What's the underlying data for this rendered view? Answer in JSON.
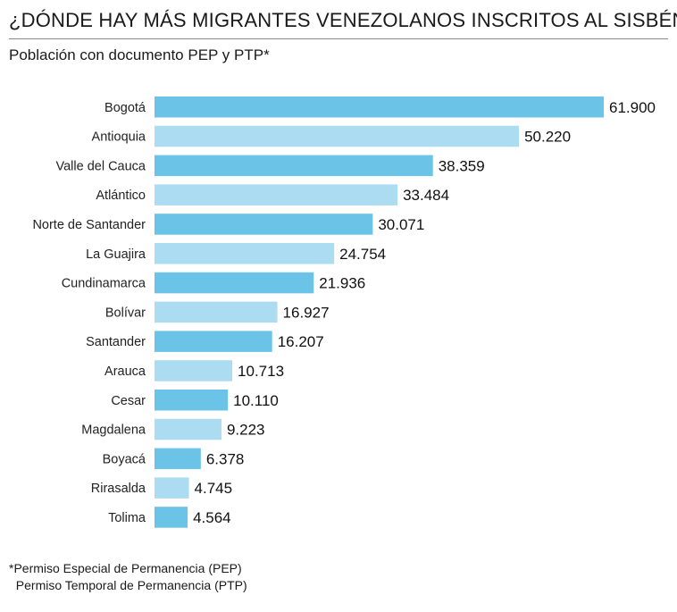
{
  "title": "¿DÓNDE HAY MÁS MIGRANTES VENEZOLANOS INSCRITOS AL SISBÉN?",
  "subtitle": "Población con documento PEP y PTP*",
  "colors": {
    "dark_bar": "#6cc3e8",
    "light_bar": "#abdcf2",
    "rule": "#8a8a8a"
  },
  "chart_data": {
    "type": "bar",
    "orientation": "horizontal",
    "title": "¿DÓNDE HAY MÁS MIGRANTES VENEZOLANOS INSCRITOS AL SISBÉN?",
    "subtitle": "Población con documento PEP y PTP*",
    "xlabel": "",
    "ylabel": "",
    "grid": false,
    "xlim": [
      0,
      61900
    ],
    "categories": [
      "Bogotá",
      "Antioquia",
      "Valle del Cauca",
      "Atlántico",
      "Norte de Santander",
      "La Guajira",
      "Cundinamarca",
      "Bolívar",
      "Santander",
      "Arauca",
      "Cesar",
      "Magdalena",
      "Boyacá",
      "Rirasalda",
      "Tolima"
    ],
    "values": [
      61900,
      50220,
      38359,
      33484,
      30071,
      24754,
      21936,
      16927,
      16207,
      10713,
      10110,
      9223,
      6378,
      4745,
      4564
    ],
    "value_labels": [
      "61.900",
      "50.220",
      "38.359",
      "33.484",
      "30.071",
      "24.754",
      "21.936",
      "16.927",
      "16.207",
      "10.713",
      "10.110",
      "9.223",
      "6.378",
      "4.745",
      "4.564"
    ]
  },
  "footnote": {
    "line1": "*Permiso Especial de Permanencia (PEP)",
    "line2": "  Permiso Temporal de Permanencia (PTP)"
  }
}
